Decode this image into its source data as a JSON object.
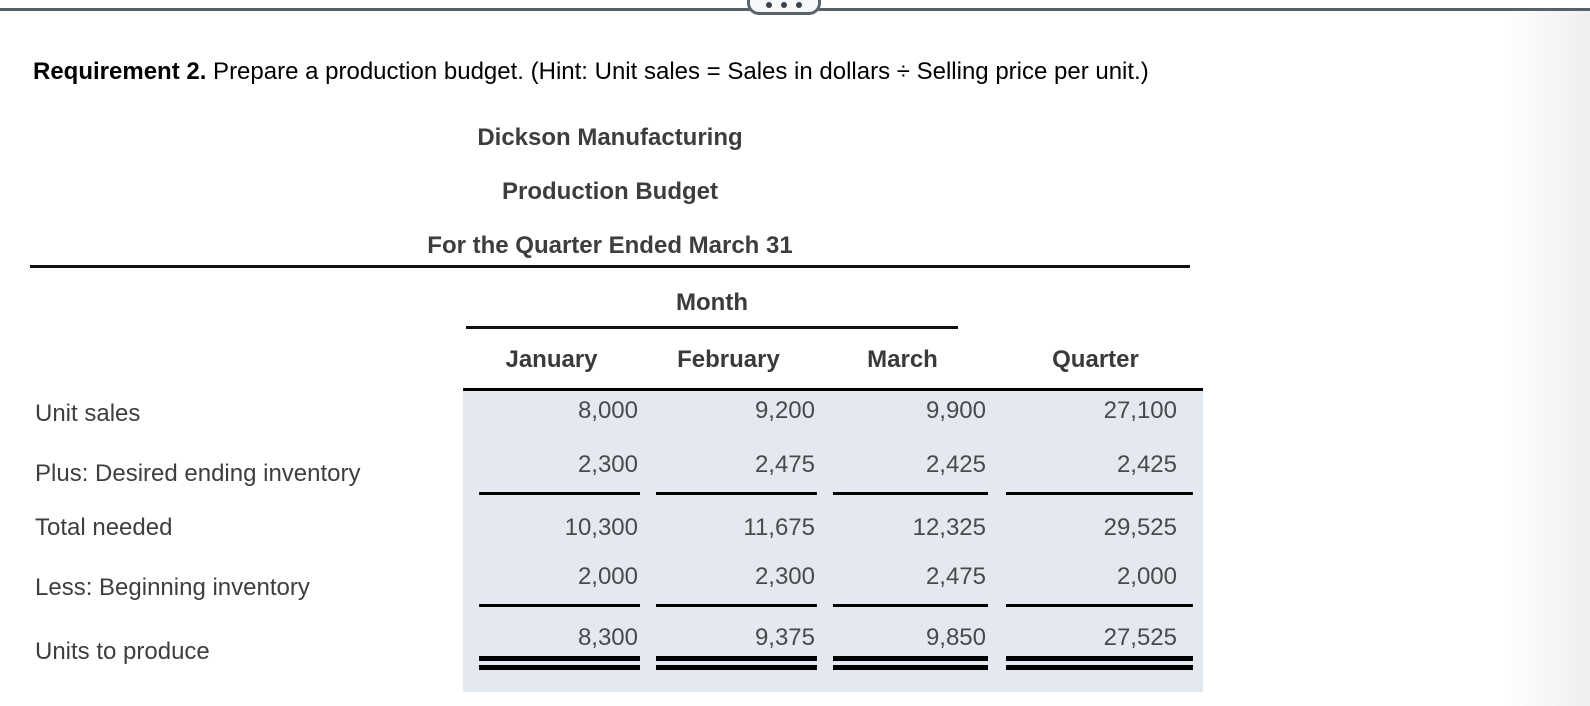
{
  "window": {
    "more_icon": "ellipsis"
  },
  "requirement": {
    "label": "Requirement 2.",
    "text": " Prepare a production budget. (Hint: Unit sales = Sales in dollars ÷ Selling price per unit.)"
  },
  "statement": {
    "company": "Dickson Manufacturing",
    "title": "Production Budget",
    "period": "For the Quarter Ended March 31"
  },
  "table": {
    "month_group_label": "Month",
    "columns": [
      "January",
      "February",
      "March",
      "Quarter"
    ],
    "rows": [
      {
        "label": "Unit sales",
        "values": [
          "8,000",
          "9,200",
          "9,900",
          "27,100"
        ]
      },
      {
        "label": "Plus: Desired ending inventory",
        "values": [
          "2,300",
          "2,475",
          "2,425",
          "2,425"
        ]
      },
      {
        "label": "Total needed",
        "values": [
          "10,300",
          "11,675",
          "12,325",
          "29,525"
        ]
      },
      {
        "label": "Less: Beginning inventory",
        "values": [
          "2,000",
          "2,300",
          "2,475",
          "2,000"
        ]
      },
      {
        "label": "Units to produce",
        "values": [
          "8,300",
          "9,375",
          "9,850",
          "27,525"
        ]
      }
    ]
  },
  "colors": {
    "data_area_bg": "#e4e8f0",
    "top_bar": "#57606a",
    "rule": "#000000",
    "text": "#3e3e3e"
  }
}
